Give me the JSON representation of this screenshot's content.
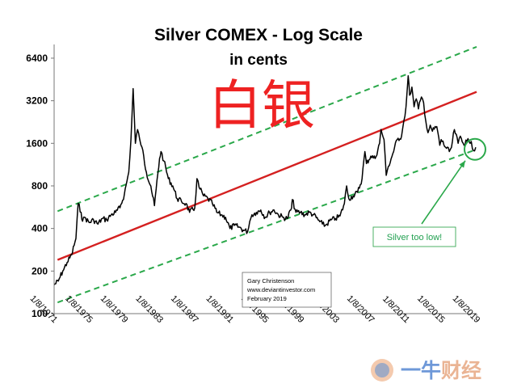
{
  "chart_data": {
    "type": "line",
    "title": "Silver COMEX - Log Scale",
    "subtitle": "in cents",
    "overlay_text": "白银",
    "y_scale": "log",
    "y_ticks": [
      100,
      200,
      400,
      800,
      1600,
      3200,
      6400
    ],
    "y_tick_labels": [
      "100",
      "200",
      "400",
      "800",
      "1600",
      "3200",
      "6400"
    ],
    "ylim": [
      100,
      8000
    ],
    "xlim": [
      "1971-01-08",
      "2019-01-08"
    ],
    "x_tick_labels": [
      "1/8/1971",
      "1/8/1975",
      "1/8/1979",
      "1/8/1983",
      "1/8/1987",
      "1/8/1991",
      "1/8/1995",
      "1/8/1999",
      "1/8/2003",
      "1/8/2007",
      "1/8/2011",
      "1/8/2015",
      "1/8/2019"
    ],
    "grid": false,
    "legend": "none",
    "series": [
      {
        "color": "#000000",
        "points": [
          [
            "1971-01-08",
            160
          ],
          [
            "1971-07-01",
            170
          ],
          [
            "1972-01-01",
            200
          ],
          [
            "1972-07-01",
            230
          ],
          [
            "1973-01-01",
            260
          ],
          [
            "1973-07-01",
            340
          ],
          [
            "1973-10-01",
            600
          ],
          [
            "1974-02-01",
            520
          ],
          [
            "1974-04-01",
            450
          ],
          [
            "1974-07-01",
            480
          ],
          [
            "1975-01-01",
            440
          ],
          [
            "1975-07-01",
            460
          ],
          [
            "1976-01-01",
            430
          ],
          [
            "1976-07-01",
            470
          ],
          [
            "1977-01-01",
            460
          ],
          [
            "1977-07-01",
            500
          ],
          [
            "1978-01-01",
            520
          ],
          [
            "1978-07-01",
            560
          ],
          [
            "1979-01-01",
            700
          ],
          [
            "1979-07-01",
            1000
          ],
          [
            "1979-10-01",
            1700
          ],
          [
            "1980-01-01",
            3900
          ],
          [
            "1980-04-01",
            1600
          ],
          [
            "1980-07-01",
            2000
          ],
          [
            "1980-10-01",
            1700
          ],
          [
            "1981-01-01",
            1500
          ],
          [
            "1981-07-01",
            1000
          ],
          [
            "1982-01-01",
            800
          ],
          [
            "1982-06-01",
            580
          ],
          [
            "1983-01-01",
            1250
          ],
          [
            "1983-03-01",
            1400
          ],
          [
            "1983-07-01",
            1200
          ],
          [
            "1984-01-01",
            900
          ],
          [
            "1984-07-01",
            800
          ],
          [
            "1985-01-01",
            650
          ],
          [
            "1985-07-01",
            620
          ],
          [
            "1986-01-01",
            600
          ],
          [
            "1986-06-01",
            520
          ],
          [
            "1987-01-01",
            560
          ],
          [
            "1987-04-01",
            900
          ],
          [
            "1987-07-01",
            780
          ],
          [
            "1988-01-01",
            680
          ],
          [
            "1988-07-01",
            650
          ],
          [
            "1989-01-01",
            600
          ],
          [
            "1989-07-01",
            520
          ],
          [
            "1990-01-01",
            500
          ],
          [
            "1990-07-01",
            480
          ],
          [
            "1991-01-01",
            400
          ],
          [
            "1991-07-01",
            420
          ],
          [
            "1992-01-01",
            410
          ],
          [
            "1992-07-01",
            390
          ],
          [
            "1993-01-01",
            380
          ],
          [
            "1993-04-01",
            450
          ],
          [
            "1993-07-01",
            500
          ],
          [
            "1994-01-01",
            520
          ],
          [
            "1994-07-01",
            540
          ],
          [
            "1995-01-01",
            480
          ],
          [
            "1995-07-01",
            520
          ],
          [
            "1996-01-01",
            540
          ],
          [
            "1996-07-01",
            500
          ],
          [
            "1997-01-01",
            480
          ],
          [
            "1997-07-01",
            470
          ],
          [
            "1998-01-01",
            560
          ],
          [
            "1998-02-01",
            640
          ],
          [
            "1998-07-01",
            520
          ],
          [
            "1999-01-01",
            520
          ],
          [
            "1999-07-01",
            500
          ],
          [
            "2000-01-01",
            520
          ],
          [
            "2000-07-01",
            500
          ],
          [
            "2001-01-01",
            460
          ],
          [
            "2001-07-01",
            430
          ],
          [
            "2001-11-01",
            420
          ],
          [
            "2002-07-01",
            460
          ],
          [
            "2003-01-01",
            470
          ],
          [
            "2003-07-01",
            490
          ],
          [
            "2004-01-01",
            600
          ],
          [
            "2004-04-01",
            800
          ],
          [
            "2004-07-01",
            650
          ],
          [
            "2005-01-01",
            680
          ],
          [
            "2005-07-01",
            720
          ],
          [
            "2006-01-01",
            900
          ],
          [
            "2006-05-01",
            1400
          ],
          [
            "2006-07-01",
            1150
          ],
          [
            "2007-01-01",
            1300
          ],
          [
            "2007-07-01",
            1250
          ],
          [
            "2008-01-01",
            1600
          ],
          [
            "2008-03-01",
            2000
          ],
          [
            "2008-07-01",
            1700
          ],
          [
            "2008-10-01",
            950
          ],
          [
            "2009-01-01",
            1100
          ],
          [
            "2009-07-01",
            1350
          ],
          [
            "2010-01-01",
            1700
          ],
          [
            "2010-07-01",
            1800
          ],
          [
            "2010-10-01",
            2300
          ],
          [
            "2011-01-01",
            2900
          ],
          [
            "2011-04-01",
            4800
          ],
          [
            "2011-06-01",
            3500
          ],
          [
            "2011-09-01",
            4000
          ],
          [
            "2011-12-01",
            2900
          ],
          [
            "2012-03-01",
            3300
          ],
          [
            "2012-06-01",
            2800
          ],
          [
            "2012-10-01",
            3400
          ],
          [
            "2013-01-01",
            3100
          ],
          [
            "2013-04-01",
            2300
          ],
          [
            "2013-07-01",
            1900
          ],
          [
            "2013-10-01",
            2150
          ],
          [
            "2014-01-01",
            1950
          ],
          [
            "2014-07-01",
            2100
          ],
          [
            "2014-11-01",
            1550
          ],
          [
            "2015-01-01",
            1700
          ],
          [
            "2015-07-01",
            1500
          ],
          [
            "2015-12-01",
            1400
          ],
          [
            "2016-03-01",
            1500
          ],
          [
            "2016-07-01",
            2000
          ],
          [
            "2016-12-01",
            1600
          ],
          [
            "2017-03-01",
            1800
          ],
          [
            "2017-07-01",
            1600
          ],
          [
            "2017-12-01",
            1650
          ],
          [
            "2018-03-01",
            1650
          ],
          [
            "2018-06-01",
            1650
          ],
          [
            "2018-09-01",
            1420
          ],
          [
            "2018-12-01",
            1500
          ]
        ]
      }
    ],
    "trend_lines": [
      {
        "style": "solid",
        "color": "#d42020",
        "points": [
          [
            "1971-06-01",
            240
          ],
          [
            "2019-01-08",
            3700
          ]
        ]
      },
      {
        "style": "dashed",
        "color": "#2aa84a",
        "points": [
          [
            "1971-06-01",
            530
          ],
          [
            "2019-01-08",
            7700
          ]
        ]
      },
      {
        "style": "dashed",
        "color": "#2aa84a",
        "points": [
          [
            "1971-06-01",
            120
          ],
          [
            "2019-01-08",
            1450
          ]
        ]
      }
    ],
    "highlight": {
      "date": "2018-11-01",
      "value": 1450,
      "color": "#2aa84a"
    },
    "annotation": {
      "text": "Silver too low!",
      "color": "#2aa84a"
    },
    "credit": {
      "lines": [
        "Gary Christenson",
        "www.deviantinvestor.com",
        "February 2019"
      ]
    },
    "watermark": {
      "text": "一牛财经"
    }
  }
}
